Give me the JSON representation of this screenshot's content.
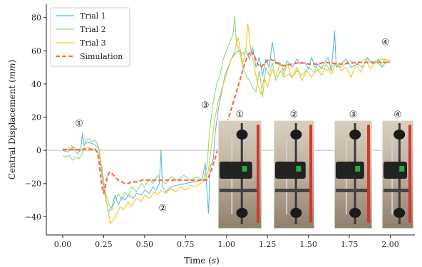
{
  "chart_data": {
    "type": "line",
    "title": "",
    "xlabel_prefix": "Time (",
    "xlabel_unit": "s",
    "xlabel_suffix": ")",
    "ylabel_prefix": "Central Displacement (",
    "ylabel_unit": "mm",
    "ylabel_suffix": ")",
    "xlim": [
      -0.1,
      2.15
    ],
    "ylim": [
      -51,
      88
    ],
    "x_ticks": [
      0.0,
      0.25,
      0.5,
      0.75,
      1.0,
      1.25,
      1.5,
      1.75,
      2.0
    ],
    "x_tick_labels": [
      "0.00",
      "0.25",
      "0.50",
      "0.75",
      "1.00",
      "1.25",
      "1.50",
      "1.75",
      "2.00"
    ],
    "y_ticks": [
      -40,
      -20,
      0,
      20,
      40,
      60,
      80
    ],
    "y_tick_labels": [
      "−40",
      "−20",
      "0",
      "20",
      "40",
      "60",
      "80"
    ],
    "grid": false,
    "reference_line_y": 0,
    "legend_position": "top-left",
    "series": [
      {
        "name": "Trial 1",
        "color": "#5cb8ee",
        "style": "solid",
        "points": [
          [
            0.0,
            0
          ],
          [
            0.03,
            -1
          ],
          [
            0.06,
            2
          ],
          [
            0.09,
            -2
          ],
          [
            0.11,
            1
          ],
          [
            0.12,
            10
          ],
          [
            0.13,
            3
          ],
          [
            0.15,
            5
          ],
          [
            0.18,
            4
          ],
          [
            0.2,
            3
          ],
          [
            0.22,
            1
          ],
          [
            0.24,
            -15
          ],
          [
            0.26,
            -28
          ],
          [
            0.28,
            -37
          ],
          [
            0.3,
            -34
          ],
          [
            0.32,
            -27
          ],
          [
            0.34,
            -33
          ],
          [
            0.36,
            -28
          ],
          [
            0.38,
            -30
          ],
          [
            0.4,
            -27
          ],
          [
            0.43,
            -29
          ],
          [
            0.45,
            -26
          ],
          [
            0.48,
            -27
          ],
          [
            0.5,
            -24
          ],
          [
            0.53,
            -26
          ],
          [
            0.55,
            -22
          ],
          [
            0.57,
            -24
          ],
          [
            0.59,
            -20
          ],
          [
            0.6,
            0
          ],
          [
            0.61,
            -22
          ],
          [
            0.63,
            -25
          ],
          [
            0.66,
            -22
          ],
          [
            0.7,
            -21
          ],
          [
            0.75,
            -20
          ],
          [
            0.8,
            -19
          ],
          [
            0.85,
            -18
          ],
          [
            0.87,
            -8
          ],
          [
            0.89,
            -38
          ],
          [
            0.9,
            -10
          ],
          [
            0.92,
            -5
          ],
          [
            0.93,
            10
          ],
          [
            0.95,
            25
          ],
          [
            0.97,
            35
          ],
          [
            0.99,
            45
          ],
          [
            1.01,
            50
          ],
          [
            1.03,
            55
          ],
          [
            1.05,
            58
          ],
          [
            1.07,
            60
          ],
          [
            1.1,
            58
          ],
          [
            1.12,
            60
          ],
          [
            1.14,
            55
          ],
          [
            1.16,
            62
          ],
          [
            1.18,
            50
          ],
          [
            1.2,
            56
          ],
          [
            1.22,
            45
          ],
          [
            1.24,
            55
          ],
          [
            1.26,
            50
          ],
          [
            1.28,
            65
          ],
          [
            1.3,
            52
          ],
          [
            1.32,
            53
          ],
          [
            1.35,
            48
          ],
          [
            1.37,
            54
          ],
          [
            1.4,
            50
          ],
          [
            1.43,
            55
          ],
          [
            1.45,
            52
          ],
          [
            1.48,
            53
          ],
          [
            1.5,
            49
          ],
          [
            1.52,
            56
          ],
          [
            1.54,
            50
          ],
          [
            1.56,
            52
          ],
          [
            1.58,
            49
          ],
          [
            1.6,
            53
          ],
          [
            1.62,
            56
          ],
          [
            1.64,
            48
          ],
          [
            1.66,
            72
          ],
          [
            1.67,
            50
          ],
          [
            1.7,
            52
          ],
          [
            1.73,
            55
          ],
          [
            1.76,
            50
          ],
          [
            1.8,
            52
          ],
          [
            1.83,
            50
          ],
          [
            1.86,
            56
          ],
          [
            1.88,
            53
          ],
          [
            1.9,
            52
          ],
          [
            1.93,
            55
          ],
          [
            1.95,
            50
          ],
          [
            1.97,
            53
          ],
          [
            2.0,
            53
          ]
        ]
      },
      {
        "name": "Trial 2",
        "color": "#8fdc7e",
        "style": "solid",
        "points": [
          [
            0.0,
            -3
          ],
          [
            0.02,
            -4
          ],
          [
            0.04,
            -3
          ],
          [
            0.06,
            -6
          ],
          [
            0.08,
            -4
          ],
          [
            0.1,
            -5
          ],
          [
            0.12,
            -2
          ],
          [
            0.14,
            6
          ],
          [
            0.16,
            7
          ],
          [
            0.18,
            5
          ],
          [
            0.2,
            6
          ],
          [
            0.22,
            2
          ],
          [
            0.24,
            -12
          ],
          [
            0.26,
            -25
          ],
          [
            0.28,
            -32
          ],
          [
            0.3,
            -36
          ],
          [
            0.32,
            -30
          ],
          [
            0.34,
            -26
          ],
          [
            0.36,
            -30
          ],
          [
            0.38,
            -25
          ],
          [
            0.4,
            -28
          ],
          [
            0.42,
            -22
          ],
          [
            0.45,
            -25
          ],
          [
            0.48,
            -20
          ],
          [
            0.5,
            -22
          ],
          [
            0.53,
            -17
          ],
          [
            0.55,
            -20
          ],
          [
            0.58,
            -15
          ],
          [
            0.6,
            -18
          ],
          [
            0.63,
            -20
          ],
          [
            0.66,
            -16
          ],
          [
            0.7,
            -18
          ],
          [
            0.74,
            -15
          ],
          [
            0.78,
            -18
          ],
          [
            0.82,
            -16
          ],
          [
            0.86,
            -18
          ],
          [
            0.88,
            -10
          ],
          [
            0.9,
            15
          ],
          [
            0.92,
            30
          ],
          [
            0.94,
            40
          ],
          [
            0.96,
            45
          ],
          [
            0.98,
            55
          ],
          [
            1.0,
            60
          ],
          [
            1.02,
            65
          ],
          [
            1.04,
            70
          ],
          [
            1.05,
            81
          ],
          [
            1.06,
            65
          ],
          [
            1.08,
            60
          ],
          [
            1.1,
            50
          ],
          [
            1.12,
            45
          ],
          [
            1.14,
            42
          ],
          [
            1.16,
            38
          ],
          [
            1.18,
            35
          ],
          [
            1.2,
            48
          ],
          [
            1.22,
            32
          ],
          [
            1.24,
            50
          ],
          [
            1.26,
            45
          ],
          [
            1.28,
            53
          ],
          [
            1.3,
            42
          ],
          [
            1.33,
            48
          ],
          [
            1.35,
            44
          ],
          [
            1.38,
            46
          ],
          [
            1.4,
            44
          ],
          [
            1.43,
            48
          ],
          [
            1.46,
            45
          ],
          [
            1.5,
            50
          ],
          [
            1.54,
            47
          ],
          [
            1.58,
            50
          ],
          [
            1.62,
            48
          ],
          [
            1.66,
            52
          ],
          [
            1.7,
            50
          ],
          [
            1.75,
            54
          ],
          [
            1.8,
            52
          ],
          [
            1.85,
            55
          ],
          [
            1.9,
            53
          ],
          [
            1.95,
            55
          ],
          [
            2.0,
            54
          ]
        ]
      },
      {
        "name": "Trial 3",
        "color": "#f4c81a",
        "style": "solid",
        "points": [
          [
            0.0,
            1
          ],
          [
            0.03,
            0
          ],
          [
            0.05,
            3
          ],
          [
            0.08,
            1
          ],
          [
            0.1,
            -1
          ],
          [
            0.13,
            1
          ],
          [
            0.16,
            2
          ],
          [
            0.18,
            0
          ],
          [
            0.2,
            1
          ],
          [
            0.22,
            -2
          ],
          [
            0.24,
            -10
          ],
          [
            0.26,
            -27
          ],
          [
            0.28,
            -38
          ],
          [
            0.29,
            -44
          ],
          [
            0.31,
            -42
          ],
          [
            0.33,
            -38
          ],
          [
            0.35,
            -34
          ],
          [
            0.37,
            -36
          ],
          [
            0.4,
            -31
          ],
          [
            0.42,
            -34
          ],
          [
            0.45,
            -29
          ],
          [
            0.48,
            -31
          ],
          [
            0.5,
            -27
          ],
          [
            0.53,
            -29
          ],
          [
            0.56,
            -25
          ],
          [
            0.58,
            -27
          ],
          [
            0.6,
            -24
          ],
          [
            0.63,
            -26
          ],
          [
            0.66,
            -23
          ],
          [
            0.69,
            -25
          ],
          [
            0.72,
            -22
          ],
          [
            0.75,
            -24
          ],
          [
            0.78,
            -21
          ],
          [
            0.81,
            -22
          ],
          [
            0.84,
            -20
          ],
          [
            0.87,
            -18
          ],
          [
            0.89,
            -12
          ],
          [
            0.91,
            5
          ],
          [
            0.93,
            20
          ],
          [
            0.95,
            30
          ],
          [
            0.98,
            40
          ],
          [
            1.0,
            46
          ],
          [
            1.03,
            55
          ],
          [
            1.05,
            60
          ],
          [
            1.07,
            68
          ],
          [
            1.09,
            58
          ],
          [
            1.1,
            52
          ],
          [
            1.12,
            63
          ],
          [
            1.13,
            76
          ],
          [
            1.15,
            60
          ],
          [
            1.17,
            50
          ],
          [
            1.19,
            40
          ],
          [
            1.21,
            34
          ],
          [
            1.23,
            44
          ],
          [
            1.25,
            38
          ],
          [
            1.28,
            49
          ],
          [
            1.3,
            44
          ],
          [
            1.33,
            53
          ],
          [
            1.35,
            45
          ],
          [
            1.37,
            52
          ],
          [
            1.4,
            44
          ],
          [
            1.43,
            50
          ],
          [
            1.46,
            42
          ],
          [
            1.49,
            48
          ],
          [
            1.52,
            44
          ],
          [
            1.55,
            50
          ],
          [
            1.58,
            45
          ],
          [
            1.61,
            52
          ],
          [
            1.64,
            46
          ],
          [
            1.67,
            53
          ],
          [
            1.7,
            48
          ],
          [
            1.73,
            50
          ],
          [
            1.76,
            44
          ],
          [
            1.79,
            52
          ],
          [
            1.82,
            47
          ],
          [
            1.85,
            54
          ],
          [
            1.88,
            49
          ],
          [
            1.91,
            54
          ],
          [
            1.94,
            51
          ],
          [
            1.97,
            55
          ],
          [
            2.0,
            53
          ]
        ]
      },
      {
        "name": "Simulation",
        "color": "#f2734a",
        "style": "dashed",
        "points": [
          [
            0.0,
            0.5
          ],
          [
            0.05,
            0.5
          ],
          [
            0.1,
            0.5
          ],
          [
            0.15,
            0.8
          ],
          [
            0.2,
            0.5
          ],
          [
            0.21,
            -1
          ],
          [
            0.22,
            -5
          ],
          [
            0.23,
            -14
          ],
          [
            0.24,
            -22
          ],
          [
            0.25,
            -26
          ],
          [
            0.26,
            -22
          ],
          [
            0.27,
            -17
          ],
          [
            0.28,
            -14
          ],
          [
            0.29,
            -13
          ],
          [
            0.3,
            -14
          ],
          [
            0.32,
            -16
          ],
          [
            0.34,
            -18
          ],
          [
            0.36,
            -19
          ],
          [
            0.38,
            -20
          ],
          [
            0.4,
            -20
          ],
          [
            0.42,
            -19
          ],
          [
            0.44,
            -19
          ],
          [
            0.46,
            -19
          ],
          [
            0.48,
            -18
          ],
          [
            0.5,
            -18
          ],
          [
            0.52,
            -18
          ],
          [
            0.56,
            -18
          ],
          [
            0.6,
            -18
          ],
          [
            0.65,
            -18
          ],
          [
            0.7,
            -18
          ],
          [
            0.75,
            -18
          ],
          [
            0.8,
            -18
          ],
          [
            0.85,
            -18
          ],
          [
            0.88,
            -18
          ],
          [
            0.9,
            -14
          ],
          [
            0.93,
            -5
          ],
          [
            0.96,
            5
          ],
          [
            1.0,
            15
          ],
          [
            1.03,
            25
          ],
          [
            1.06,
            35
          ],
          [
            1.09,
            45
          ],
          [
            1.11,
            52
          ],
          [
            1.13,
            57
          ],
          [
            1.15,
            60
          ],
          [
            1.17,
            57
          ],
          [
            1.19,
            52
          ],
          [
            1.21,
            50
          ],
          [
            1.23,
            52
          ],
          [
            1.26,
            55
          ],
          [
            1.29,
            54
          ],
          [
            1.32,
            52
          ],
          [
            1.35,
            51
          ],
          [
            1.4,
            52
          ],
          [
            1.45,
            53
          ],
          [
            1.5,
            52
          ],
          [
            1.55,
            52
          ],
          [
            1.6,
            53
          ],
          [
            1.7,
            52
          ],
          [
            1.8,
            53
          ],
          [
            1.9,
            53
          ],
          [
            2.0,
            53
          ]
        ]
      }
    ],
    "annotations": [
      {
        "label": "①",
        "x": 0.1,
        "y": 17
      },
      {
        "label": "②",
        "x": 0.61,
        "y": -34
      },
      {
        "label": "③",
        "x": 0.87,
        "y": 28
      },
      {
        "label": "④",
        "x": 1.97,
        "y": 66
      }
    ]
  },
  "inset_photos": {
    "labels": [
      "①",
      "②",
      "③",
      "④"
    ],
    "image_description": "photo-of-robot-leg-frame"
  }
}
